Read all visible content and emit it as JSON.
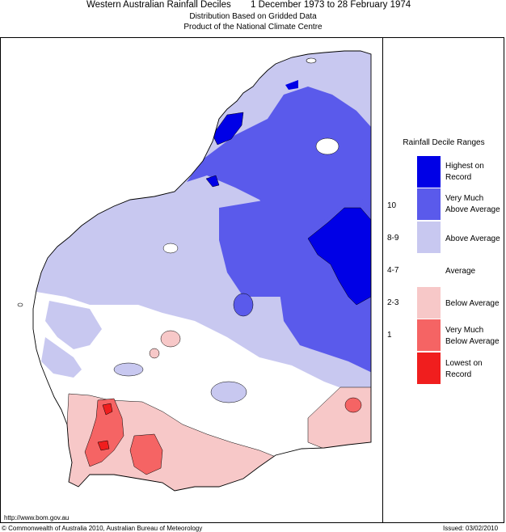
{
  "header": {
    "title_left": "Western Australian Rainfall Deciles",
    "title_right": "1 December 1973 to 28 February 1974",
    "subtitle_1": "Distribution Based on Gridded Data",
    "subtitle_2": "Product of the National Climate Centre"
  },
  "legend": {
    "title": "Rainfall Decile Ranges",
    "classes": [
      {
        "label_1": "Highest on",
        "label_2": "Record",
        "color": "#0000e6"
      },
      {
        "label_1": "Very Much",
        "label_2": "Above Average",
        "color": "#5a5aeb"
      },
      {
        "label_1": "Above Average",
        "label_2": "",
        "color": "#c8c8f0"
      },
      {
        "label_1": "Average",
        "label_2": "",
        "color": "#ffffff"
      },
      {
        "label_1": "Below Average",
        "label_2": "",
        "color": "#f7c8c8"
      },
      {
        "label_1": "Very Much",
        "label_2": "Below Average",
        "color": "#f56464"
      },
      {
        "label_1": "Lowest on",
        "label_2": "Record",
        "color": "#f01e1e"
      }
    ],
    "ranges": [
      "10",
      "8-9",
      "4-7",
      "2-3",
      "1"
    ]
  },
  "footer": {
    "url": "http://www.bom.gov.au",
    "copyright": "© Commonwealth of Australia 2010, Australian Bureau of Meteorology",
    "issued": "Issued: 03/02/2010"
  }
}
